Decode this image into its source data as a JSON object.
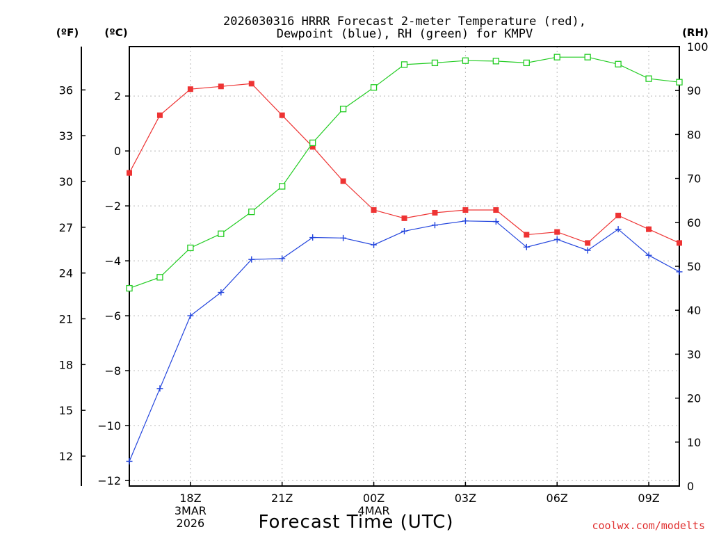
{
  "chart_data": {
    "type": "line",
    "title": [
      "2026030316 HRRR Forecast 2-meter Temperature (red),",
      "Dewpoint (blue), RH (green) for KMPV"
    ],
    "unit_labels": {
      "fahrenheit": "(ºF)",
      "celsius": "(ºC)",
      "rh": "(RH)"
    },
    "xlabel": "Forecast Time (UTC)",
    "watermark": "coolwx.com/modelts",
    "x_hours": [
      16,
      17,
      18,
      19,
      20,
      21,
      22,
      23,
      24,
      25,
      26,
      27,
      28,
      29,
      30,
      31,
      32,
      33,
      34
    ],
    "x_ticks": [
      {
        "hour": 18,
        "lines": [
          "18Z",
          "3MAR",
          "2026"
        ]
      },
      {
        "hour": 21,
        "lines": [
          "21Z"
        ]
      },
      {
        "hour": 24,
        "lines": [
          "00Z",
          "4MAR"
        ]
      },
      {
        "hour": 27,
        "lines": [
          "03Z"
        ]
      },
      {
        "hour": 30,
        "lines": [
          "06Z"
        ]
      },
      {
        "hour": 33,
        "lines": [
          "09Z"
        ]
      }
    ],
    "x_range": [
      16,
      34
    ],
    "celsius_range": [
      -12.2,
      3.8
    ],
    "celsius_ticks": [
      2,
      0,
      -2,
      -4,
      -6,
      -8,
      -10,
      -12
    ],
    "celsius_tick_labels": [
      "2",
      "0",
      "−2",
      "−4",
      "−6",
      "−8",
      "−10",
      "−12"
    ],
    "fahrenheit_ticks": [
      "36",
      "33",
      "30",
      "27",
      "24",
      "21",
      "18",
      "15",
      "12"
    ],
    "fahrenheit_values": [
      36,
      33,
      30,
      27,
      24,
      21,
      18,
      15,
      12
    ],
    "rh_range": [
      0,
      100
    ],
    "rh_ticks": [
      "100",
      "90",
      "80",
      "70",
      "60",
      "50",
      "40",
      "30",
      "20",
      "10",
      "0"
    ],
    "rh_values": [
      100,
      90,
      80,
      70,
      60,
      50,
      40,
      30,
      20,
      10,
      0
    ],
    "series": [
      {
        "name": "Temperature",
        "axis": "celsius",
        "color": "#ee3333",
        "marker": "filled-square",
        "values": [
          -0.8,
          1.3,
          2.25,
          2.35,
          2.45,
          1.3,
          0.15,
          -1.1,
          -2.15,
          -2.45,
          -2.25,
          -2.15,
          -2.15,
          -3.05,
          -2.95,
          -3.35,
          -2.35,
          -2.85,
          -3.35
        ]
      },
      {
        "name": "Dewpoint",
        "axis": "celsius",
        "color": "#2244dd",
        "marker": "plus",
        "values": [
          -11.3,
          -8.65,
          -6.0,
          -5.15,
          -3.95,
          -3.92,
          -3.15,
          -3.17,
          -3.42,
          -2.92,
          -2.7,
          -2.55,
          -2.57,
          -3.5,
          -3.22,
          -3.62,
          -2.85,
          -3.8,
          -4.4
        ]
      },
      {
        "name": "RH",
        "axis": "rh",
        "color": "#22cc22",
        "marker": "open-square",
        "values": [
          45,
          47.5,
          54.2,
          57.4,
          62.4,
          68.2,
          78.1,
          85.8,
          90.7,
          95.9,
          96.3,
          96.8,
          96.7,
          96.3,
          97.6,
          97.6,
          96.0,
          92.7,
          91.9
        ]
      }
    ]
  }
}
